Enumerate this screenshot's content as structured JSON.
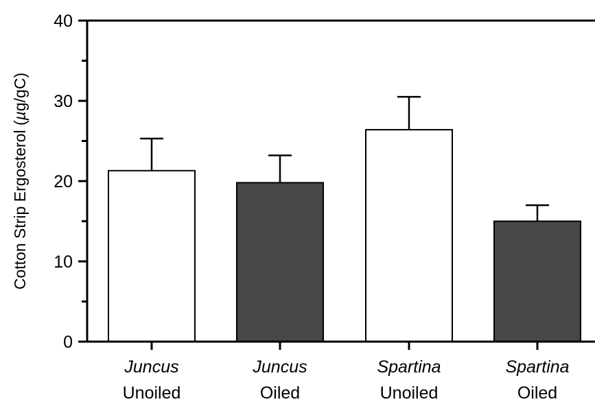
{
  "chart_data": {
    "type": "bar",
    "ylabel_prefix": "Cotton Strip Ergosterol (",
    "ylabel_mu": "µ",
    "ylabel_suffix": "g/gC)",
    "ylim": [
      0,
      40
    ],
    "yticks": [
      "0",
      "10",
      "20",
      "30",
      "40"
    ],
    "grid": false,
    "categories": [
      {
        "species": "Juncus",
        "treatment": "Unoiled"
      },
      {
        "species": "Juncus",
        "treatment": "Oiled"
      },
      {
        "species": "Spartina",
        "treatment": "Unoiled"
      },
      {
        "species": "Spartina",
        "treatment": "Oiled"
      }
    ],
    "values": [
      21.3,
      19.8,
      26.4,
      15.0
    ],
    "errors": [
      4.0,
      3.4,
      4.1,
      2.0
    ],
    "colors": [
      "#ffffff",
      "#464847",
      "#ffffff",
      "#464847"
    ]
  }
}
